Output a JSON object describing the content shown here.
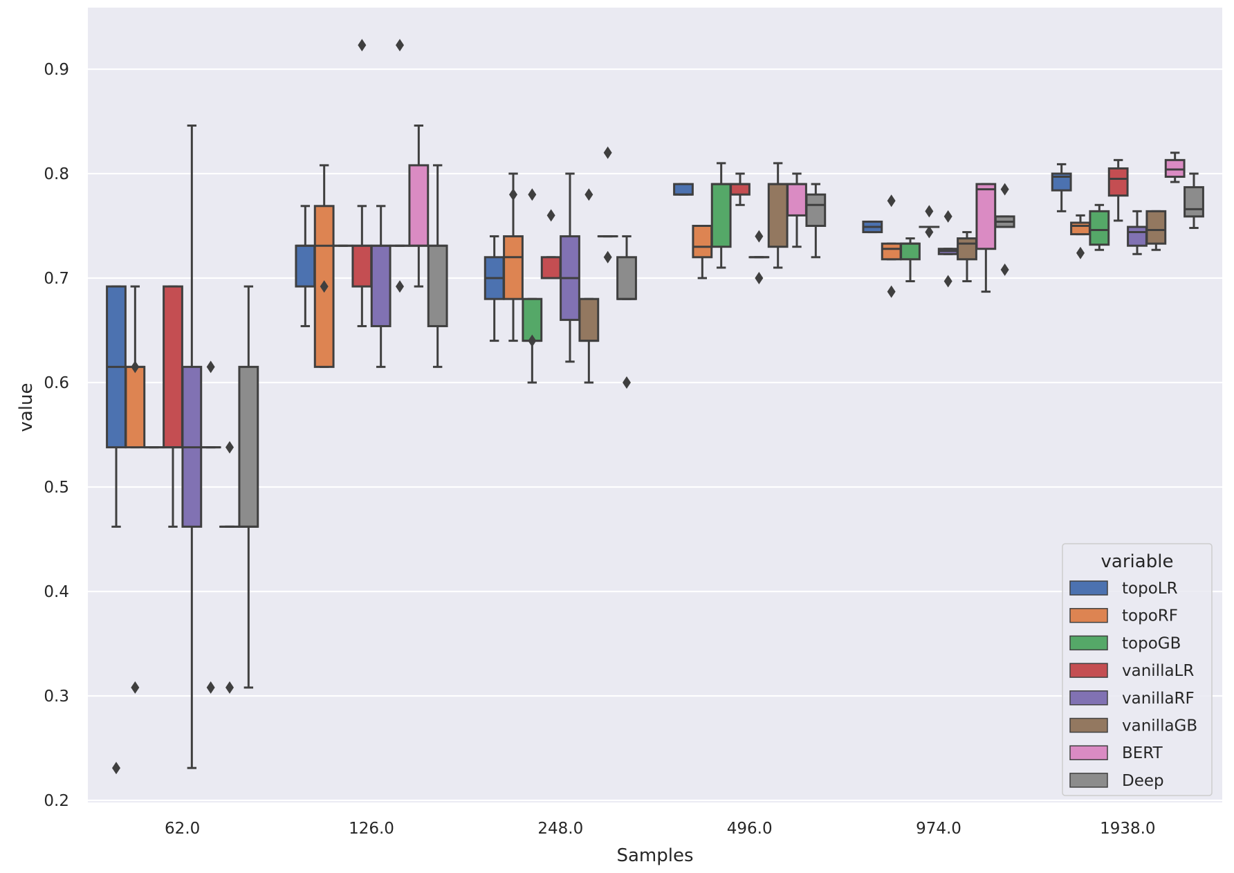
{
  "chart_data": {
    "type": "box",
    "xlabel": "Samples",
    "ylabel": "value",
    "ylim": [
      0.2,
      0.96
    ],
    "yticks": [
      "0.2",
      "0.3",
      "0.4",
      "0.5",
      "0.6",
      "0.7",
      "0.8",
      "0.9"
    ],
    "grid": true,
    "legend": {
      "title": "variable",
      "position": "bottom-right"
    },
    "categories": [
      "62.0",
      "126.0",
      "248.0",
      "496.0",
      "974.0",
      "1938.0"
    ],
    "series": [
      {
        "name": "topoLR",
        "color": "#4c72b0",
        "boxes": [
          {
            "q1": 0.538,
            "median": 0.615,
            "q3": 0.692,
            "whislo": 0.462,
            "whishi": 0.692,
            "fliers": [
              0.231
            ]
          },
          {
            "q1": 0.692,
            "median": 0.731,
            "q3": 0.731,
            "whislo": 0.654,
            "whishi": 0.769,
            "fliers": []
          },
          {
            "q1": 0.68,
            "median": 0.7,
            "q3": 0.72,
            "whislo": 0.64,
            "whishi": 0.74,
            "fliers": []
          },
          {
            "q1": 0.78,
            "median": 0.78,
            "q3": 0.79,
            "whislo": 0.78,
            "whishi": 0.79,
            "fliers": []
          },
          {
            "q1": 0.744,
            "median": 0.749,
            "q3": 0.754,
            "whislo": 0.744,
            "whishi": 0.754,
            "fliers": []
          },
          {
            "q1": 0.784,
            "median": 0.797,
            "q3": 0.8,
            "whislo": 0.764,
            "whishi": 0.809,
            "fliers": []
          }
        ]
      },
      {
        "name": "topoRF",
        "color": "#dd8452",
        "boxes": [
          {
            "q1": 0.538,
            "median": 0.615,
            "q3": 0.615,
            "whislo": 0.538,
            "whishi": 0.692,
            "fliers": [
              0.615,
              0.308
            ]
          },
          {
            "q1": 0.615,
            "median": 0.731,
            "q3": 0.769,
            "whislo": 0.615,
            "whishi": 0.808,
            "fliers": [
              0.692
            ]
          },
          {
            "q1": 0.68,
            "median": 0.72,
            "q3": 0.74,
            "whislo": 0.64,
            "whishi": 0.8,
            "fliers": [
              0.78
            ]
          },
          {
            "q1": 0.72,
            "median": 0.73,
            "q3": 0.75,
            "whislo": 0.7,
            "whishi": 0.75,
            "fliers": []
          },
          {
            "q1": 0.718,
            "median": 0.728,
            "q3": 0.733,
            "whislo": 0.718,
            "whishi": 0.733,
            "fliers": [
              0.774,
              0.687
            ]
          },
          {
            "q1": 0.742,
            "median": 0.75,
            "q3": 0.753,
            "whislo": 0.742,
            "whishi": 0.76,
            "fliers": [
              0.724
            ]
          }
        ]
      },
      {
        "name": "topoGB",
        "color": "#55a868",
        "boxes": [
          {
            "q1": 0.538,
            "median": 0.538,
            "q3": 0.538,
            "whislo": 0.538,
            "whishi": 0.538,
            "fliers": []
          },
          {
            "q1": 0.731,
            "median": 0.731,
            "q3": 0.731,
            "whislo": 0.731,
            "whishi": 0.731,
            "fliers": []
          },
          {
            "q1": 0.64,
            "median": 0.64,
            "q3": 0.68,
            "whislo": 0.6,
            "whishi": 0.68,
            "fliers": [
              0.78,
              0.64
            ]
          },
          {
            "q1": 0.73,
            "median": 0.79,
            "q3": 0.79,
            "whislo": 0.71,
            "whishi": 0.81,
            "fliers": []
          },
          {
            "q1": 0.718,
            "median": 0.733,
            "q3": 0.733,
            "whislo": 0.697,
            "whishi": 0.738,
            "fliers": []
          },
          {
            "q1": 0.732,
            "median": 0.746,
            "q3": 0.764,
            "whislo": 0.727,
            "whishi": 0.77,
            "fliers": []
          }
        ]
      },
      {
        "name": "vanillaLR",
        "color": "#c44e52",
        "boxes": [
          {
            "q1": 0.538,
            "median": 0.538,
            "q3": 0.692,
            "whislo": 0.462,
            "whishi": 0.692,
            "fliers": []
          },
          {
            "q1": 0.692,
            "median": 0.731,
            "q3": 0.731,
            "whislo": 0.654,
            "whishi": 0.769,
            "fliers": [
              0.923
            ]
          },
          {
            "q1": 0.7,
            "median": 0.7,
            "q3": 0.72,
            "whislo": 0.7,
            "whishi": 0.72,
            "fliers": [
              0.76
            ]
          },
          {
            "q1": 0.78,
            "median": 0.79,
            "q3": 0.79,
            "whislo": 0.77,
            "whishi": 0.8,
            "fliers": []
          },
          {
            "q1": 0.749,
            "median": 0.749,
            "q3": 0.749,
            "whislo": 0.749,
            "whishi": 0.749,
            "fliers": [
              0.764,
              0.744
            ]
          },
          {
            "q1": 0.779,
            "median": 0.795,
            "q3": 0.805,
            "whislo": 0.755,
            "whishi": 0.813,
            "fliers": []
          }
        ]
      },
      {
        "name": "vanillaRF",
        "color": "#8172b3",
        "boxes": [
          {
            "q1": 0.462,
            "median": 0.538,
            "q3": 0.615,
            "whislo": 0.231,
            "whishi": 0.846,
            "fliers": []
          },
          {
            "q1": 0.654,
            "median": 0.731,
            "q3": 0.731,
            "whislo": 0.615,
            "whishi": 0.769,
            "fliers": []
          },
          {
            "q1": 0.66,
            "median": 0.7,
            "q3": 0.74,
            "whislo": 0.62,
            "whishi": 0.8,
            "fliers": []
          },
          {
            "q1": 0.72,
            "median": 0.72,
            "q3": 0.72,
            "whislo": 0.72,
            "whishi": 0.72,
            "fliers": [
              0.74,
              0.7
            ]
          },
          {
            "q1": 0.723,
            "median": 0.726,
            "q3": 0.728,
            "whislo": 0.723,
            "whishi": 0.728,
            "fliers": [
              0.759,
              0.697
            ]
          },
          {
            "q1": 0.731,
            "median": 0.744,
            "q3": 0.749,
            "whislo": 0.723,
            "whishi": 0.764,
            "fliers": []
          }
        ]
      },
      {
        "name": "vanillaGB",
        "color": "#937860",
        "boxes": [
          {
            "q1": 0.538,
            "median": 0.538,
            "q3": 0.538,
            "whislo": 0.538,
            "whishi": 0.538,
            "fliers": [
              0.615,
              0.308
            ]
          },
          {
            "q1": 0.731,
            "median": 0.731,
            "q3": 0.731,
            "whislo": 0.731,
            "whishi": 0.731,
            "fliers": [
              0.923,
              0.692
            ]
          },
          {
            "q1": 0.64,
            "median": 0.64,
            "q3": 0.68,
            "whislo": 0.6,
            "whishi": 0.68,
            "fliers": [
              0.78
            ]
          },
          {
            "q1": 0.73,
            "median": 0.79,
            "q3": 0.79,
            "whislo": 0.71,
            "whishi": 0.81,
            "fliers": []
          },
          {
            "q1": 0.718,
            "median": 0.733,
            "q3": 0.738,
            "whislo": 0.697,
            "whishi": 0.744,
            "fliers": []
          },
          {
            "q1": 0.733,
            "median": 0.746,
            "q3": 0.764,
            "whislo": 0.727,
            "whishi": 0.764,
            "fliers": []
          }
        ]
      },
      {
        "name": "BERT",
        "color": "#da8bc3",
        "boxes": [
          {
            "q1": 0.462,
            "median": 0.462,
            "q3": 0.462,
            "whislo": 0.462,
            "whishi": 0.462,
            "fliers": [
              0.538,
              0.308
            ]
          },
          {
            "q1": 0.731,
            "median": 0.731,
            "q3": 0.808,
            "whislo": 0.692,
            "whishi": 0.846,
            "fliers": []
          },
          {
            "q1": 0.74,
            "median": 0.74,
            "q3": 0.74,
            "whislo": 0.74,
            "whishi": 0.74,
            "fliers": [
              0.82,
              0.72
            ]
          },
          {
            "q1": 0.76,
            "median": 0.79,
            "q3": 0.79,
            "whislo": 0.73,
            "whishi": 0.8,
            "fliers": []
          },
          {
            "q1": 0.728,
            "median": 0.785,
            "q3": 0.79,
            "whislo": 0.687,
            "whishi": 0.79,
            "fliers": []
          },
          {
            "q1": 0.797,
            "median": 0.804,
            "q3": 0.813,
            "whislo": 0.792,
            "whishi": 0.82,
            "fliers": []
          }
        ]
      },
      {
        "name": "Deep",
        "color": "#8c8c8c",
        "boxes": [
          {
            "q1": 0.462,
            "median": 0.462,
            "q3": 0.615,
            "whislo": 0.308,
            "whishi": 0.692,
            "fliers": []
          },
          {
            "q1": 0.654,
            "median": 0.731,
            "q3": 0.731,
            "whislo": 0.615,
            "whishi": 0.808,
            "fliers": []
          },
          {
            "q1": 0.68,
            "median": 0.68,
            "q3": 0.72,
            "whislo": 0.68,
            "whishi": 0.74,
            "fliers": [
              0.6
            ]
          },
          {
            "q1": 0.75,
            "median": 0.77,
            "q3": 0.78,
            "whislo": 0.72,
            "whishi": 0.79,
            "fliers": []
          },
          {
            "q1": 0.749,
            "median": 0.754,
            "q3": 0.759,
            "whislo": 0.749,
            "whishi": 0.759,
            "fliers": [
              0.785,
              0.708
            ]
          },
          {
            "q1": 0.759,
            "median": 0.766,
            "q3": 0.787,
            "whislo": 0.748,
            "whishi": 0.8,
            "fliers": []
          }
        ]
      }
    ]
  }
}
